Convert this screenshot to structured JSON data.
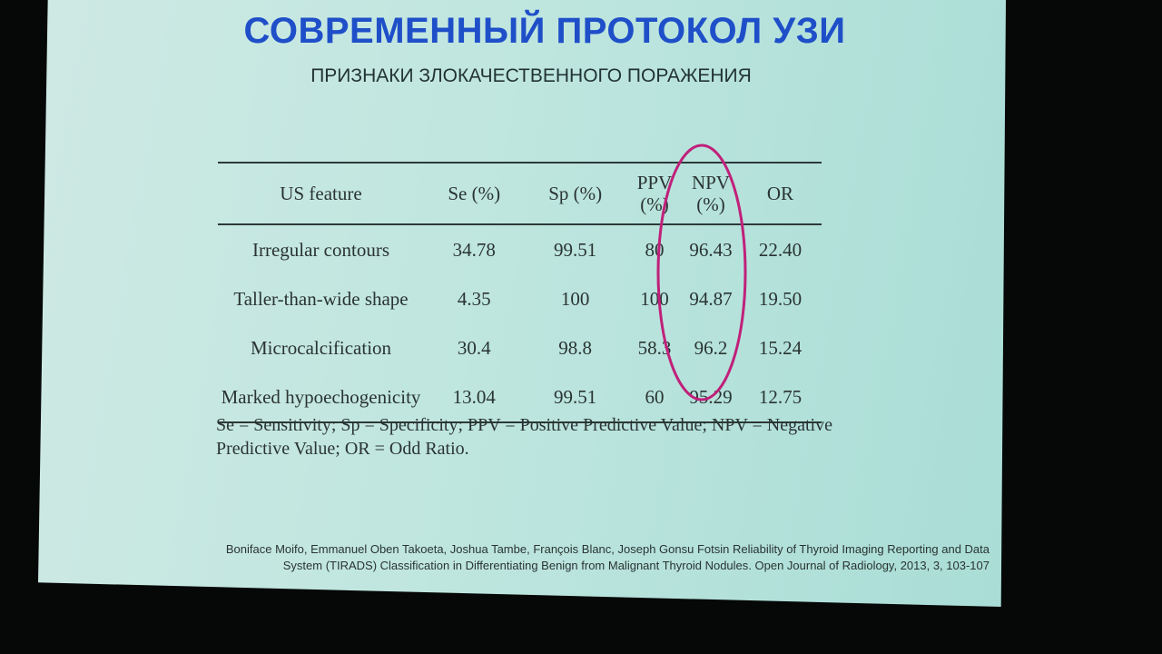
{
  "slide": {
    "title": "СОВРЕМЕННЫЙ ПРОТОКОЛ УЗИ",
    "subtitle": "ПРИЗНАКИ ЗЛОКАЧЕСТВЕННОГО ПОРАЖЕНИЯ",
    "table": {
      "header": [
        "US feature",
        "Se (%)",
        "Sp (%)",
        "PPV (%)",
        "NPV (%)",
        "OR"
      ],
      "rows": [
        [
          "Irregular contours",
          "34.78",
          "99.51",
          "80",
          "96.43",
          "22.40"
        ],
        [
          "Taller-than-wide shape",
          "4.35",
          "100",
          "100",
          "94.87",
          "19.50"
        ],
        [
          "Microcalcification",
          "30.4",
          "98.8",
          "58.3",
          "96.2",
          "15.24"
        ],
        [
          "Marked hypoechogenicity",
          "13.04",
          "99.51",
          "60",
          "95.29",
          "12.75"
        ]
      ]
    },
    "note": "Se = Sensitivity; Sp = Specificity; PPV = Positive Predictive Value; NPV = Negative Predictive Value; OR = Odd Ratio.",
    "citation": "Boniface Moifo, Emmanuel Oben Takoeta, Joshua Tambe, François Blanc, Joseph Gonsu Fotsin Reliability of Thyroid Imaging Reporting and Data System (TIRADS) Classification in Differentiating Benign from Malignant Thyroid Nodules. Open Journal of Radiology, 2013, 3, 103-107"
  }
}
